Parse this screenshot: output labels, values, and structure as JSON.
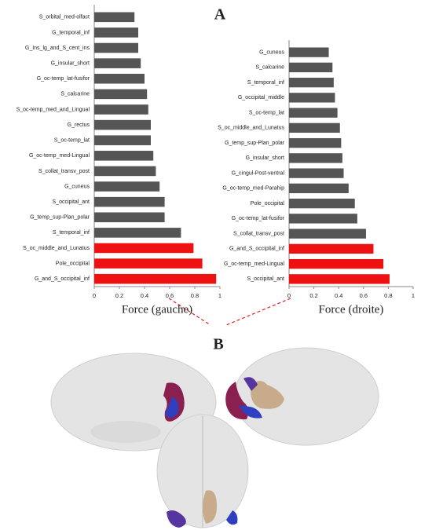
{
  "chart_data": [
    {
      "type": "bar",
      "orientation": "horizontal",
      "panel": "A",
      "xlabel": "Force (gauche)",
      "categories": [
        "S_orbital_med-olfact",
        "G_temporal_inf",
        "G_Ins_lg_and_S_cent_ins",
        "G_insular_short",
        "G_oc-temp_lat-fusifor",
        "S_calcarine",
        "S_oc-temp_med_and_Lingual",
        "G_rectus",
        "S_oc-temp_lat",
        "G_oc-temp_med-Lingual",
        "S_collat_transv_post",
        "G_cuneus",
        "S_occipital_ant",
        "G_temp_sup-Plan_polar",
        "S_temporal_inf",
        "S_oc_middle_and_Lunatus",
        "Pole_occipital",
        "G_and_S_occipital_inf"
      ],
      "values": [
        0.32,
        0.35,
        0.35,
        0.37,
        0.4,
        0.42,
        0.43,
        0.45,
        0.45,
        0.47,
        0.49,
        0.52,
        0.56,
        0.56,
        0.69,
        0.79,
        0.86,
        0.97
      ],
      "colors": [
        "#555555",
        "#555555",
        "#555555",
        "#555555",
        "#555555",
        "#555555",
        "#555555",
        "#555555",
        "#555555",
        "#555555",
        "#555555",
        "#555555",
        "#555555",
        "#555555",
        "#555555",
        "#ee1111",
        "#ee1111",
        "#ee1111"
      ],
      "xlim": [
        0,
        1
      ],
      "xticks": [
        0,
        0.2,
        0.4,
        0.6,
        0.8,
        1
      ]
    },
    {
      "type": "bar",
      "orientation": "horizontal",
      "xlabel": "Force (droite)",
      "categories": [
        "G_cuneus",
        "S_calcarine",
        "S_temporal_inf",
        "G_occipital_middle",
        "S_oc-temp_lat",
        "S_oc_middle_and_Lunatus",
        "G_temp_sup-Plan_polar",
        "G_insular_short",
        "G_cingul-Post-ventral",
        "G_oc-temp_med-Parahip",
        "Pole_occipital",
        "G_oc-temp_lat-fusifor",
        "S_collat_transv_post",
        "G_and_S_occipital_inf",
        "G_oc-temp_med-Lingual",
        "S_occipital_ant"
      ],
      "values": [
        0.32,
        0.35,
        0.36,
        0.37,
        0.39,
        0.41,
        0.42,
        0.43,
        0.44,
        0.48,
        0.53,
        0.55,
        0.62,
        0.68,
        0.76,
        0.81
      ],
      "colors": [
        "#555555",
        "#555555",
        "#555555",
        "#555555",
        "#555555",
        "#555555",
        "#555555",
        "#555555",
        "#555555",
        "#555555",
        "#555555",
        "#555555",
        "#555555",
        "#ee1111",
        "#ee1111",
        "#ee1111"
      ],
      "xlim": [
        0,
        1
      ],
      "xticks": [
        0,
        0.2,
        0.4,
        0.6,
        0.8,
        1
      ]
    }
  ],
  "figure": {
    "panel_b": "B"
  }
}
